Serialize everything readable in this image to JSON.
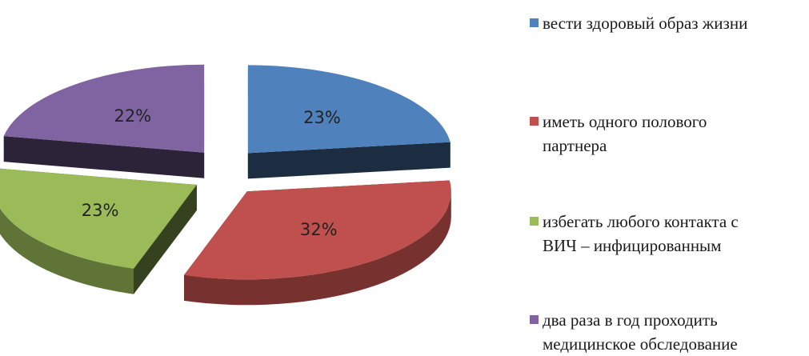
{
  "chart_data": {
    "type": "pie",
    "style": "3d-exploded",
    "title": "",
    "categories": [
      "вести здоровый образ жизни",
      "иметь одного полового\nпартнера",
      "избегать любого контакта с\nВИЧ – инфицированным",
      "два раза в год проходить\nмедицинское обследование"
    ],
    "values": [
      23,
      32,
      23,
      22
    ],
    "value_labels": [
      "23%",
      "32%",
      "23%",
      "22%"
    ],
    "colors": [
      "#4f81bd",
      "#c0504d",
      "#9bbb59",
      "#8064a2"
    ],
    "legend_position": "right"
  }
}
